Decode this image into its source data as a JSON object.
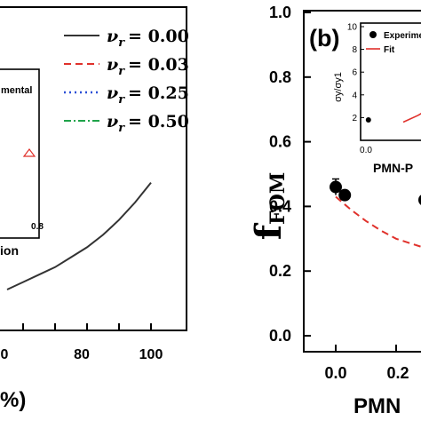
{
  "chart_data": [
    {
      "panel": "left",
      "type": "line",
      "x": [
        10,
        20,
        30,
        40,
        50,
        60,
        70,
        80,
        90,
        100
      ],
      "xlim": [
        0,
        100
      ],
      "x_ticks": [
        0,
        20,
        40,
        60,
        80,
        100
      ],
      "x_tick_labels": [
        "0",
        "",
        "",
        "",
        "80",
        "100"
      ],
      "xlabel_fragment": "%)",
      "legend": {
        "placement": "top-right",
        "entries": [
          {
            "symbol": "ν",
            "sub": "r",
            "value": "= 0.00",
            "color": "#333333",
            "dash": "solid"
          },
          {
            "symbol": "ν",
            "sub": "r",
            "value": "= 0.03",
            "color": "#e0312b",
            "dash": "dashed"
          },
          {
            "symbol": "ν",
            "sub": "r",
            "value": "= 0.25",
            "color": "#2a4fd6",
            "dash": "dotted"
          },
          {
            "symbol": "ν",
            "sub": "r",
            "value": "= 0.50",
            "color": "#1fa34a",
            "dash": "dashdot"
          }
        ]
      },
      "series": [
        {
          "color": "#333333",
          "values": [
            0.05,
            0.08,
            0.11,
            0.14,
            0.18,
            0.22,
            0.27,
            0.33,
            0.4,
            0.48
          ]
        }
      ],
      "inset": {
        "legend_fragment": "mental",
        "xlabel_fragment": "ion",
        "x_tick_label": "0.8",
        "marker": "open-triangle",
        "marker_color": "#e0312b"
      }
    },
    {
      "panel": "right",
      "panel_label": "(b)",
      "type": "scatter",
      "ylabel": "f",
      "ylabel_sub": "FOM",
      "ylim": [
        0,
        1.0
      ],
      "y_ticks": [
        0.0,
        0.2,
        0.4,
        0.6,
        0.8,
        1.0
      ],
      "y_tick_labels": [
        "0.0",
        "0.2",
        "0.4",
        "0.6",
        "0.8",
        "1.0"
      ],
      "xlim": [
        -0.08,
        0.45
      ],
      "x_tick_labels": [
        "0.0",
        "0.2"
      ],
      "xlabel_fragment": "PMN",
      "series": [
        {
          "kind": "points",
          "color": "#000000",
          "x": [
            0.0,
            0.03
          ],
          "y": [
            0.46,
            0.435
          ],
          "yerr": [
            0.025,
            0.0
          ]
        },
        {
          "kind": "fit",
          "color": "#e0312b",
          "dash": "dashed",
          "x": [
            0.0,
            0.05,
            0.1,
            0.15,
            0.2,
            0.25,
            0.3
          ],
          "y": [
            0.43,
            0.39,
            0.355,
            0.325,
            0.3,
            0.285,
            0.27
          ]
        }
      ],
      "partial_marker_y": 0.42,
      "inset": {
        "ylim": [
          0,
          10
        ],
        "y_tick_labels": [
          "2",
          "4",
          "6",
          "8",
          "10"
        ],
        "x_tick_label": "0.0",
        "xlabel_fragment": "PMN-P",
        "ylabel": "σy/σy1",
        "legend": [
          {
            "label": "Experime",
            "marker": "filled-circle",
            "color": "#000000"
          },
          {
            "label": "Fit",
            "marker": "line",
            "color": "#e0312b"
          }
        ],
        "point": {
          "x": 0.02,
          "y": 1.8
        },
        "fit": {
          "x": [
            0.3,
            0.42,
            0.5
          ],
          "y": [
            1.6,
            2.2,
            2.7
          ]
        }
      }
    }
  ]
}
